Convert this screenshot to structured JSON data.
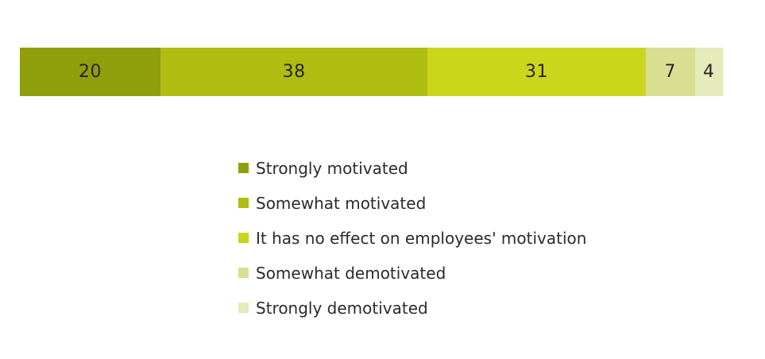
{
  "chart_data": {
    "type": "bar",
    "variant": "horizontal-stacked",
    "title": "",
    "xlabel": "",
    "ylabel": "",
    "categories": [
      "Strongly motivated",
      "Somewhat motivated",
      "It has no effect on employees' motivation",
      "Somewhat demotivated",
      "Strongly demotivated"
    ],
    "values": [
      20,
      38,
      31,
      7,
      4
    ],
    "total": 100,
    "colors": [
      "#8f9e0b",
      "#afbd11",
      "#c9d61c",
      "#d9df90",
      "#e5ebba"
    ],
    "data_label_color": "#262626",
    "legend": {
      "position": "below-bar, left-aligned column",
      "marker": "square"
    },
    "background_color": "#ffffff",
    "grid": false,
    "axes_visible": false
  }
}
